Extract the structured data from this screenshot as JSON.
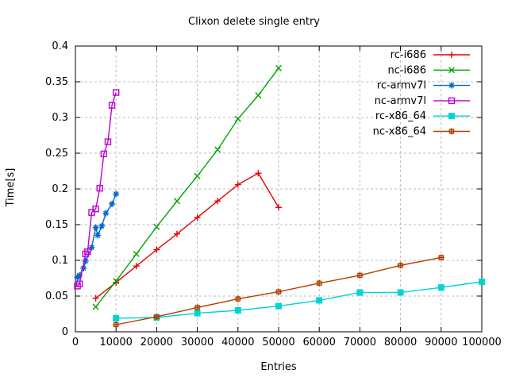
{
  "chart_data": {
    "type": "line",
    "title": "Clixon delete single entry",
    "xlabel": "Entries",
    "ylabel": "Time[s]",
    "xlim": [
      0,
      100000
    ],
    "ylim": [
      0,
      0.4
    ],
    "grid": true,
    "legend_position": "top-right-inside",
    "xticks": {
      "values": [
        0,
        10000,
        20000,
        30000,
        40000,
        50000,
        60000,
        70000,
        80000,
        90000,
        100000
      ],
      "labels": [
        "0",
        "10000",
        "20000",
        "30000",
        "40000",
        "50000",
        "60000",
        "70000",
        "80000",
        "90000",
        "100000"
      ]
    },
    "yticks": {
      "values": [
        0,
        0.05,
        0.1,
        0.15,
        0.2,
        0.25,
        0.3,
        0.35,
        0.4
      ],
      "labels": [
        "0",
        "0.05",
        "0.1",
        "0.15",
        "0.2",
        "0.25",
        "0.3",
        "0.35",
        "0.4"
      ]
    },
    "colors": {
      "grid": "#bbbbbb",
      "border": "#000000",
      "background": "#ffffff"
    },
    "series": [
      {
        "name": "rc-i686",
        "color": "#e60000",
        "marker": "plus",
        "points": [
          [
            5000,
            0.047
          ],
          [
            10000,
            0.069
          ],
          [
            15000,
            0.092
          ],
          [
            20000,
            0.115
          ],
          [
            25000,
            0.137
          ],
          [
            30000,
            0.16
          ],
          [
            35000,
            0.183
          ],
          [
            40000,
            0.206
          ],
          [
            45000,
            0.222
          ],
          [
            50000,
            0.174
          ]
        ]
      },
      {
        "name": "nc-i686",
        "color": "#00a400",
        "marker": "cross",
        "points": [
          [
            5000,
            0.035
          ],
          [
            10000,
            0.071
          ],
          [
            15000,
            0.109
          ],
          [
            20000,
            0.147
          ],
          [
            25000,
            0.183
          ],
          [
            30000,
            0.218
          ],
          [
            35000,
            0.255
          ],
          [
            40000,
            0.298
          ],
          [
            45000,
            0.331
          ],
          [
            50000,
            0.369
          ]
        ]
      },
      {
        "name": "rc-armv7l",
        "color": "#0066cc",
        "marker": "asterisk",
        "points": [
          [
            500,
            0.076
          ],
          [
            1000,
            0.079
          ],
          [
            2000,
            0.089
          ],
          [
            2500,
            0.099
          ],
          [
            4000,
            0.118
          ],
          [
            5000,
            0.146
          ],
          [
            5500,
            0.135
          ],
          [
            6500,
            0.148
          ],
          [
            7500,
            0.166
          ],
          [
            9000,
            0.179
          ],
          [
            10000,
            0.193
          ]
        ]
      },
      {
        "name": "nc-armv7l",
        "color": "#c000cc",
        "marker": "open-square",
        "points": [
          [
            500,
            0.064
          ],
          [
            1000,
            0.067
          ],
          [
            2500,
            0.109
          ],
          [
            3000,
            0.112
          ],
          [
            4000,
            0.167
          ],
          [
            5000,
            0.172
          ],
          [
            6000,
            0.201
          ],
          [
            7000,
            0.249
          ],
          [
            8000,
            0.266
          ],
          [
            9000,
            0.317
          ],
          [
            10000,
            0.335
          ]
        ]
      },
      {
        "name": "rc-x86_64",
        "color": "#00d4d4",
        "marker": "filled-square",
        "points": [
          [
            10000,
            0.019
          ],
          [
            20000,
            0.02
          ],
          [
            30000,
            0.026
          ],
          [
            40000,
            0.03
          ],
          [
            50000,
            0.036
          ],
          [
            60000,
            0.044
          ],
          [
            70000,
            0.055
          ],
          [
            80000,
            0.055
          ],
          [
            90000,
            0.062
          ],
          [
            100000,
            0.07
          ]
        ]
      },
      {
        "name": "nc-x86_64",
        "color": "#b04000",
        "marker": "boxed-plus",
        "points": [
          [
            10000,
            0.01
          ],
          [
            20000,
            0.021
          ],
          [
            30000,
            0.034
          ],
          [
            40000,
            0.046
          ],
          [
            50000,
            0.056
          ],
          [
            60000,
            0.068
          ],
          [
            70000,
            0.079
          ],
          [
            80000,
            0.093
          ],
          [
            90000,
            0.104
          ]
        ]
      }
    ]
  }
}
